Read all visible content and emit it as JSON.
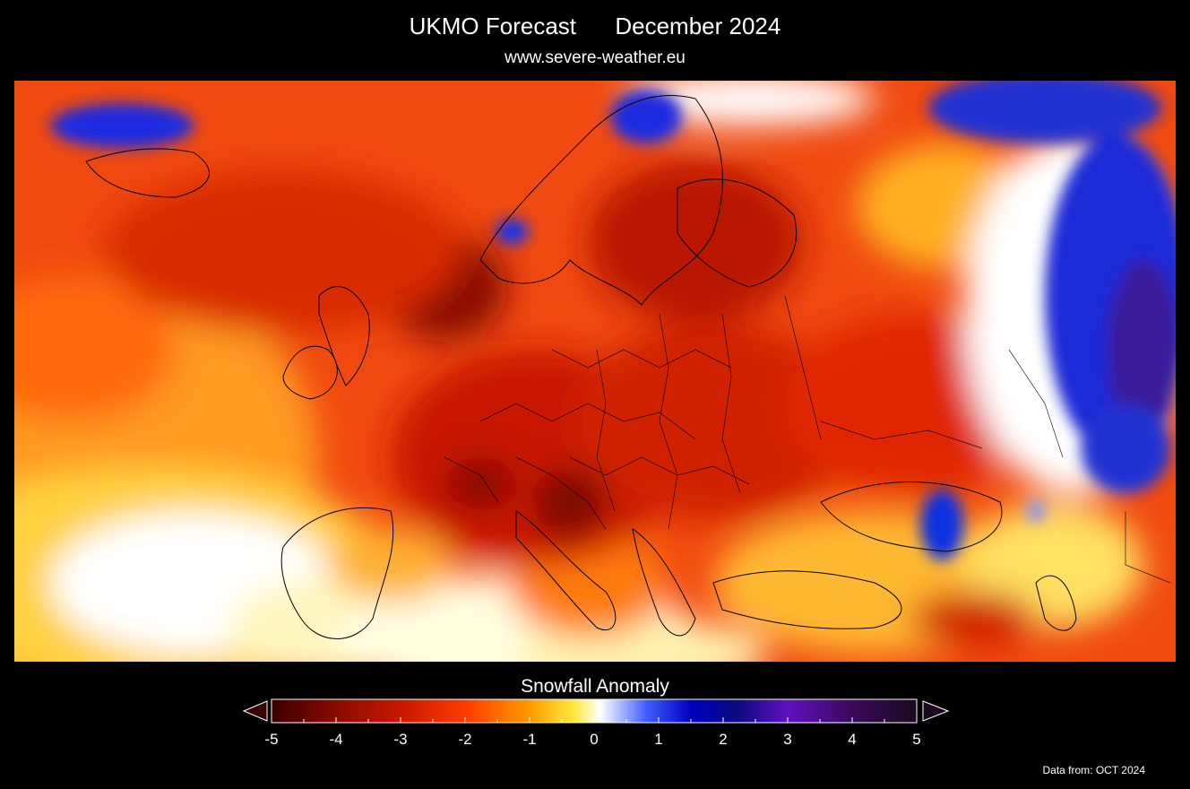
{
  "header": {
    "title": "UKMO Forecast      December 2024",
    "subtitle": "www.severe-weather.eu"
  },
  "legend": {
    "title": "Snowfall Anomaly",
    "ticks": [
      "-5",
      "-4",
      "-3",
      "-2",
      "-1",
      "0",
      "1",
      "2",
      "3",
      "4",
      "5"
    ],
    "range": [
      -5,
      5
    ],
    "colors": [
      "#3a0000",
      "#8a0a00",
      "#d42000",
      "#ff4a00",
      "#ff9a00",
      "#ffea40",
      "#ffffff",
      "#4060ff",
      "#0000c0",
      "#0a0a80",
      "#6010c0",
      "#3a0a5a",
      "#1a0a20"
    ]
  },
  "footer": {
    "source": "Data from: OCT 2024"
  },
  "map": {
    "region": "Europe",
    "variable": "snowfall anomaly",
    "colors": {
      "strong_negative": "#7a0a00",
      "negative": "#e03000",
      "mild_negative": "#ff8a00",
      "near_zero": "#ffe060",
      "zero": "#ffffff",
      "positive": "#1030e0",
      "strong_positive": "#3a1a8a"
    }
  }
}
